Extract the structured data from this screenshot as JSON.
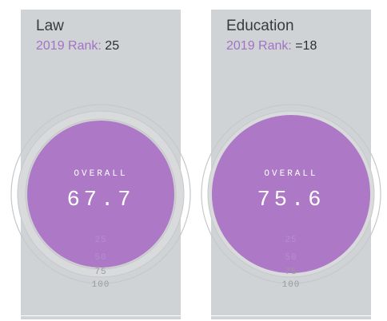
{
  "cards": [
    {
      "subject": "Law",
      "rank_label": "2019 Rank",
      "rank_sep": ":",
      "rank_value": "25",
      "overall_label": "OVERALL",
      "overall_score": "67.7",
      "score_fraction": 0.677,
      "ticks": [
        "25",
        "50",
        "75",
        "100"
      ]
    },
    {
      "subject": "Education",
      "rank_label": "2019 Rank",
      "rank_sep": ":",
      "rank_value": "=18",
      "overall_label": "OVERALL",
      "overall_score": "75.6",
      "score_fraction": 0.756,
      "ticks": [
        "25",
        "50",
        "75",
        "100"
      ]
    }
  ],
  "colors": {
    "card_bg": "#d0d3d6",
    "accent": "#ad78c6",
    "rank_label": "#a272c4",
    "ring": "#c6c8ca"
  }
}
